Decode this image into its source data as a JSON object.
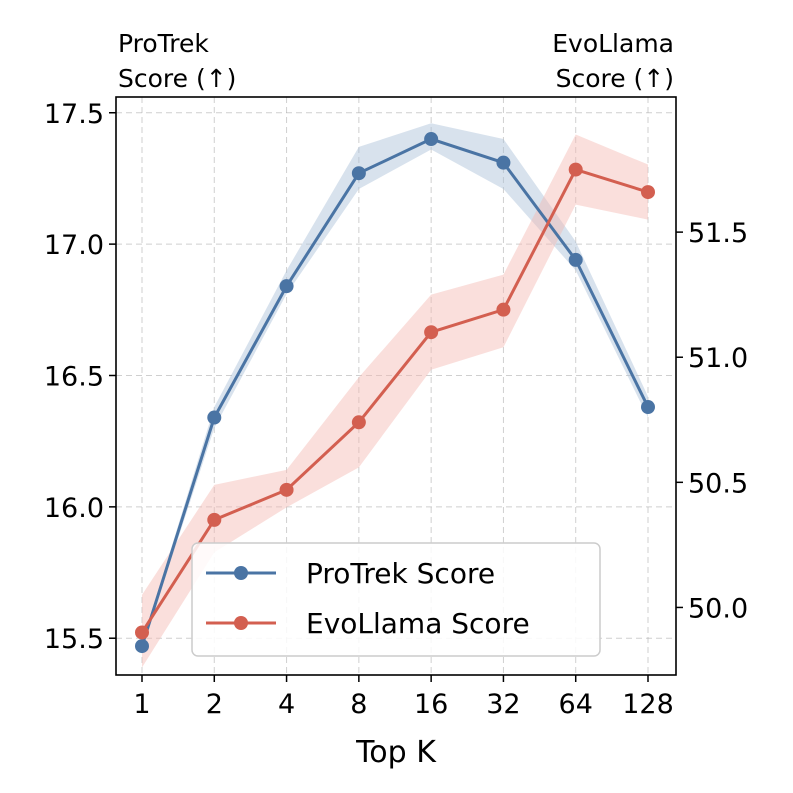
{
  "chart_data": {
    "type": "line",
    "xlabel": "Top K",
    "left_axis_title": [
      "ProTrek",
      "Score (↑)"
    ],
    "right_axis_title": [
      "EvoLlama",
      "Score (↑)"
    ],
    "categories": [
      "1",
      "2",
      "4",
      "8",
      "16",
      "32",
      "64",
      "128"
    ],
    "left_ylim": [
      15.36,
      17.56
    ],
    "left_yticks": [
      15.5,
      16.0,
      16.5,
      17.0,
      17.5
    ],
    "left_ytick_labels": [
      "15.5",
      "16.0",
      "16.5",
      "17.0",
      "17.5"
    ],
    "right_ylim": [
      49.73,
      52.04
    ],
    "right_yticks": [
      50.0,
      50.5,
      51.0,
      51.5
    ],
    "right_ytick_labels": [
      "50.0",
      "50.5",
      "51.0",
      "51.5"
    ],
    "grid": true,
    "legend_position": "lower-right",
    "series": [
      {
        "name": "ProTrek Score",
        "axis": "left",
        "color": "#4a74a4",
        "band_color": "#a8bfd8",
        "values": [
          15.47,
          16.34,
          16.84,
          17.27,
          17.4,
          17.31,
          16.94,
          16.38
        ],
        "lower": [
          15.46,
          16.3,
          16.81,
          17.21,
          17.36,
          17.21,
          16.9,
          16.34
        ],
        "upper": [
          15.48,
          16.38,
          16.9,
          17.37,
          17.46,
          17.4,
          17.01,
          16.42
        ]
      },
      {
        "name": "EvoLlama Score",
        "axis": "right",
        "color": "#d35f50",
        "band_color": "#f3b9b1",
        "values": [
          49.9,
          50.35,
          50.47,
          50.74,
          51.1,
          51.19,
          51.75,
          51.66
        ],
        "lower": [
          49.76,
          50.22,
          50.4,
          50.56,
          50.95,
          51.04,
          51.61,
          51.55
        ],
        "upper": [
          50.05,
          50.49,
          50.55,
          50.92,
          51.25,
          51.33,
          51.89,
          51.77
        ]
      }
    ]
  }
}
